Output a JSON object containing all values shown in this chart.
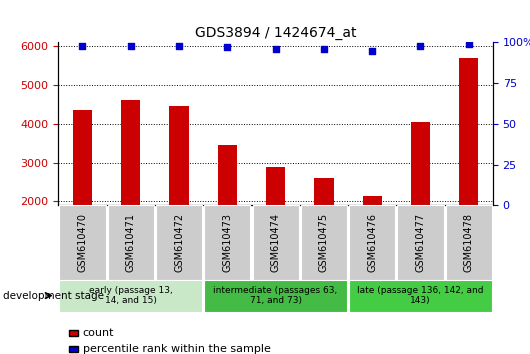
{
  "title": "GDS3894 / 1424674_at",
  "samples": [
    "GSM610470",
    "GSM610471",
    "GSM610472",
    "GSM610473",
    "GSM610474",
    "GSM610475",
    "GSM610476",
    "GSM610477",
    "GSM610478"
  ],
  "counts": [
    4350,
    4620,
    4470,
    3450,
    2880,
    2600,
    2150,
    4050,
    5700
  ],
  "percentile_ranks": [
    98,
    98,
    98,
    97,
    96,
    96,
    95,
    98,
    99
  ],
  "bar_color": "#cc0000",
  "dot_color": "#0000cc",
  "ylim_left": [
    1900,
    6100
  ],
  "ylim_right": [
    0,
    100
  ],
  "yticks_left": [
    2000,
    3000,
    4000,
    5000,
    6000
  ],
  "yticks_right": [
    0,
    25,
    50,
    75,
    100
  ],
  "yticklabels_right": [
    "0",
    "25",
    "50",
    "75",
    "100%"
  ],
  "group_boundaries": [
    0,
    3,
    6,
    9
  ],
  "group_labels": [
    "early (passage 13,\n14, and 15)",
    "intermediate (passages 63,\n71, and 73)",
    "late (passage 136, 142, and\n143)"
  ],
  "group_colors": [
    "#c8e8c8",
    "#44bb44",
    "#44cc44"
  ],
  "dev_stage_label": "development stage",
  "legend_count_label": "count",
  "legend_percentile_label": "percentile rank within the sample",
  "ticklabel_bg": "#cccccc",
  "bar_width": 0.4
}
